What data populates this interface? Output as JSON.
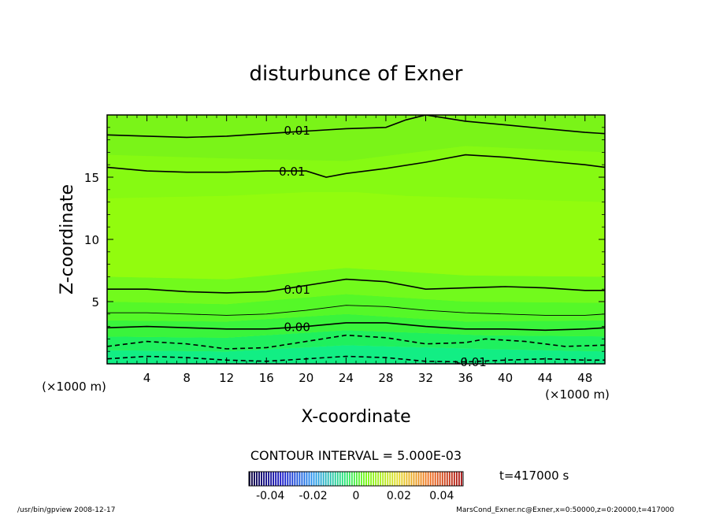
{
  "chart_data": {
    "type": "heatmap",
    "title": "disturbunce of Exner",
    "xlabel": "X-coordinate",
    "ylabel": "Z-coordinate",
    "x_unit": "(×1000 m)",
    "x_unit_right": "(×1000 m)",
    "xlim": [
      0,
      50
    ],
    "ylim": [
      0,
      20
    ],
    "x_ticks": [
      4,
      8,
      12,
      16,
      20,
      24,
      28,
      32,
      36,
      40,
      44,
      48
    ],
    "y_ticks": [
      5,
      10,
      15
    ],
    "contour_interval_text": "CONTOUR INTERVAL = 5.000E-03",
    "time_text": "t=417000 s",
    "colorbar": {
      "tick_labels": [
        "-0.04",
        "-0.02",
        "0",
        "0.02",
        "0.04"
      ],
      "tick_values": [
        -0.04,
        -0.02,
        0,
        0.02,
        0.04
      ],
      "range": [
        -0.05,
        0.05
      ]
    },
    "contours": [
      {
        "label": "-0.01",
        "style": "dashed",
        "label_at": [
          35.0,
          0.2
        ],
        "points": [
          [
            0,
            0.4
          ],
          [
            4,
            0.6
          ],
          [
            8,
            0.5
          ],
          [
            12,
            0.3
          ],
          [
            16,
            0.2
          ],
          [
            20,
            0.4
          ],
          [
            24,
            0.6
          ],
          [
            28,
            0.5
          ],
          [
            32,
            0.2
          ],
          [
            36,
            0.15
          ],
          [
            40,
            0.3
          ],
          [
            44,
            0.4
          ],
          [
            48,
            0.3
          ],
          [
            50,
            0.3
          ]
        ]
      },
      {
        "label": "",
        "style": "dashed",
        "points": [
          [
            0,
            1.4
          ],
          [
            4,
            1.8
          ],
          [
            8,
            1.6
          ],
          [
            12,
            1.2
          ],
          [
            16,
            1.3
          ],
          [
            20,
            1.8
          ],
          [
            24,
            2.3
          ],
          [
            28,
            2.1
          ],
          [
            32,
            1.6
          ],
          [
            36,
            1.7
          ],
          [
            38,
            2.0
          ],
          [
            42,
            1.8
          ],
          [
            46,
            1.4
          ],
          [
            50,
            1.5
          ]
        ]
      },
      {
        "label": "0.00",
        "style": "solid",
        "label_at": [
          17.5,
          3.0
        ],
        "points": [
          [
            0,
            2.9
          ],
          [
            4,
            3.0
          ],
          [
            8,
            2.9
          ],
          [
            12,
            2.8
          ],
          [
            16,
            2.8
          ],
          [
            20,
            3.0
          ],
          [
            24,
            3.3
          ],
          [
            28,
            3.3
          ],
          [
            32,
            3.0
          ],
          [
            36,
            2.8
          ],
          [
            40,
            2.8
          ],
          [
            44,
            2.7
          ],
          [
            48,
            2.8
          ],
          [
            50,
            2.9
          ]
        ]
      },
      {
        "label": "",
        "style": "solid",
        "thin": true,
        "points": [
          [
            0,
            4.1
          ],
          [
            4,
            4.1
          ],
          [
            8,
            4.0
          ],
          [
            12,
            3.9
          ],
          [
            16,
            4.0
          ],
          [
            20,
            4.3
          ],
          [
            24,
            4.7
          ],
          [
            28,
            4.6
          ],
          [
            32,
            4.3
          ],
          [
            36,
            4.1
          ],
          [
            40,
            4.0
          ],
          [
            44,
            3.9
          ],
          [
            48,
            3.9
          ],
          [
            50,
            4.0
          ]
        ]
      },
      {
        "label": "0.01",
        "style": "solid",
        "label_at": [
          17.5,
          6.0
        ],
        "points": [
          [
            0,
            6.0
          ],
          [
            4,
            6.0
          ],
          [
            8,
            5.8
          ],
          [
            12,
            5.7
          ],
          [
            16,
            5.8
          ],
          [
            20,
            6.3
          ],
          [
            24,
            6.8
          ],
          [
            28,
            6.6
          ],
          [
            32,
            6.0
          ],
          [
            36,
            6.1
          ],
          [
            40,
            6.2
          ],
          [
            44,
            6.1
          ],
          [
            48,
            5.9
          ],
          [
            50,
            5.9
          ]
        ]
      },
      {
        "label": "0.01",
        "style": "solid",
        "label_at": [
          17.0,
          15.5
        ],
        "points": [
          [
            0,
            15.8
          ],
          [
            4,
            15.5
          ],
          [
            8,
            15.4
          ],
          [
            12,
            15.4
          ],
          [
            16,
            15.5
          ],
          [
            20,
            15.5
          ],
          [
            22,
            15.0
          ],
          [
            24,
            15.3
          ],
          [
            28,
            15.7
          ],
          [
            32,
            16.2
          ],
          [
            36,
            16.8
          ],
          [
            40,
            16.6
          ],
          [
            44,
            16.3
          ],
          [
            48,
            16.0
          ],
          [
            50,
            15.8
          ]
        ]
      },
      {
        "label": "0.01",
        "style": "solid",
        "label_at": [
          17.5,
          18.8
        ],
        "points": [
          [
            0,
            18.4
          ],
          [
            4,
            18.3
          ],
          [
            8,
            18.2
          ],
          [
            12,
            18.3
          ],
          [
            16,
            18.5
          ],
          [
            20,
            18.7
          ],
          [
            24,
            18.9
          ],
          [
            28,
            19.0
          ],
          [
            30,
            19.6
          ],
          [
            32,
            20.0
          ],
          [
            36,
            19.5
          ],
          [
            40,
            19.2
          ],
          [
            44,
            18.9
          ],
          [
            48,
            18.6
          ],
          [
            50,
            18.5
          ]
        ]
      }
    ],
    "bands": [
      {
        "points": [
          [
            0,
            0.0
          ],
          [
            50,
            0.0
          ],
          [
            50,
            1.0
          ],
          [
            38,
            1.2
          ],
          [
            24,
            1.5
          ],
          [
            12,
            1.0
          ],
          [
            0,
            1.1
          ]
        ],
        "color": "#12ee84"
      },
      {
        "points": [
          [
            0,
            1.1
          ],
          [
            12,
            1.0
          ],
          [
            24,
            1.5
          ],
          [
            38,
            1.2
          ],
          [
            50,
            1.0
          ],
          [
            50,
            2.2
          ],
          [
            38,
            2.3
          ],
          [
            24,
            2.7
          ],
          [
            12,
            2.1
          ],
          [
            0,
            2.2
          ]
        ],
        "color": "#1ff05e"
      },
      {
        "points": [
          [
            0,
            2.2
          ],
          [
            12,
            2.1
          ],
          [
            24,
            2.7
          ],
          [
            38,
            2.3
          ],
          [
            50,
            2.2
          ],
          [
            50,
            3.5
          ],
          [
            36,
            3.4
          ],
          [
            24,
            4.0
          ],
          [
            12,
            3.4
          ],
          [
            0,
            3.5
          ]
        ],
        "color": "#3af43c"
      },
      {
        "points": [
          [
            0,
            3.5
          ],
          [
            12,
            3.4
          ],
          [
            24,
            4.0
          ],
          [
            36,
            3.4
          ],
          [
            50,
            3.5
          ],
          [
            50,
            4.9
          ],
          [
            36,
            5.0
          ],
          [
            24,
            5.6
          ],
          [
            12,
            4.8
          ],
          [
            0,
            5.0
          ]
        ],
        "color": "#55f828"
      },
      {
        "points": [
          [
            0,
            5.0
          ],
          [
            12,
            4.8
          ],
          [
            24,
            5.6
          ],
          [
            36,
            5.0
          ],
          [
            50,
            4.9
          ],
          [
            50,
            7.0
          ],
          [
            36,
            7.1
          ],
          [
            24,
            7.7
          ],
          [
            12,
            6.8
          ],
          [
            0,
            7.0
          ]
        ],
        "color": "#72fa1c"
      },
      {
        "points": [
          [
            0,
            7.0
          ],
          [
            12,
            6.8
          ],
          [
            24,
            7.7
          ],
          [
            36,
            7.1
          ],
          [
            50,
            7.0
          ],
          [
            50,
            13.0
          ],
          [
            30,
            13.5
          ],
          [
            25,
            13.8
          ],
          [
            20,
            13.8
          ],
          [
            12,
            13.5
          ],
          [
            0,
            13.3
          ]
        ],
        "color": "#92fc0e"
      },
      {
        "points": [
          [
            0,
            13.3
          ],
          [
            12,
            13.5
          ],
          [
            20,
            13.8
          ],
          [
            25,
            13.8
          ],
          [
            30,
            13.5
          ],
          [
            50,
            13.0
          ],
          [
            50,
            17.0
          ],
          [
            36,
            17.5
          ],
          [
            24,
            16.3
          ],
          [
            12,
            16.5
          ],
          [
            0,
            16.8
          ]
        ],
        "color": "#86fa12"
      },
      {
        "points": [
          [
            0,
            16.8
          ],
          [
            12,
            16.5
          ],
          [
            24,
            16.3
          ],
          [
            36,
            17.5
          ],
          [
            50,
            17.0
          ],
          [
            50,
            20
          ],
          [
            0,
            20
          ]
        ],
        "color": "#7af418"
      }
    ]
  },
  "footer": {
    "left": "/usr/bin/gpview   2008-12-17",
    "right": "MarsCond_Exner.nc@Exner,x=0:50000,z=0:20000,t=417000"
  }
}
